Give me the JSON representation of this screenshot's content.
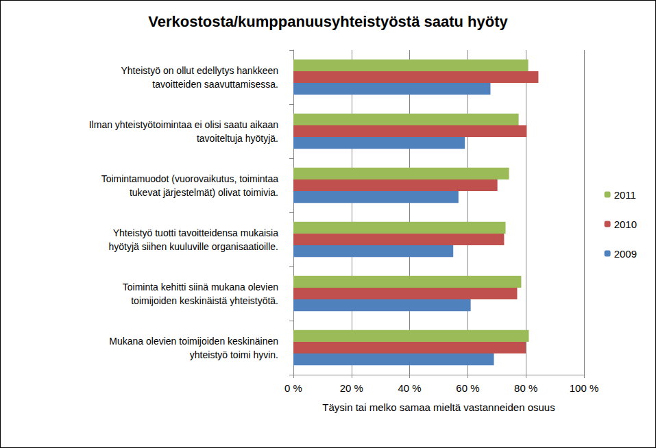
{
  "chart_data": {
    "type": "bar",
    "orientation": "horizontal",
    "title": "Verkostosta/kumppanuusyhteistyöstä saatu hyöty",
    "x_label": "Täysin tai melko samaa mieltä vastanneiden osuus",
    "categories": [
      "Yhteistyö on ollut edellytys hankkeen\ntavoitteiden saavuttamisessa.",
      "Ilman yhteistyötoimintaa ei olisi saatu aikaan\ntavoiteltuja hyötyjä.",
      "Toimintamuodot (vuorovaikutus, toimintaa\ntukevat järjestelmät) olivat toimivia.",
      "Yhteistyö tuotti tavoitteidensa mukaisia\nhyötyjä siihen kuuluville organisaatioille.",
      "Toiminta kehitti siinä mukana olevien\ntoimijoiden keskinäistä yhteistyötä.",
      "Mukana olevien toimijoiden keskinäinen\nyhteistyö toimi hyvin."
    ],
    "series": [
      {
        "name": "2011",
        "color": "#9bbb59",
        "values": [
          80.8,
          77.5,
          74.2,
          73,
          78.4,
          81
        ]
      },
      {
        "name": "2010",
        "color": "#c0504d",
        "values": [
          84.3,
          80.3,
          70.2,
          72.5,
          77,
          80
        ]
      },
      {
        "name": "2009",
        "color": "#4f81bd",
        "values": [
          67.8,
          59,
          56.8,
          55,
          61,
          69
        ]
      }
    ],
    "xlim": [
      0,
      100
    ],
    "xticks": [
      {
        "value": 0,
        "label": "0 %"
      },
      {
        "value": 20,
        "label": "20 %"
      },
      {
        "value": 40,
        "label": "40 %"
      },
      {
        "value": 60,
        "label": "60 %"
      },
      {
        "value": 80,
        "label": "80 %"
      },
      {
        "value": 100,
        "label": "100 %"
      }
    ],
    "grid": true,
    "legend": "right"
  }
}
